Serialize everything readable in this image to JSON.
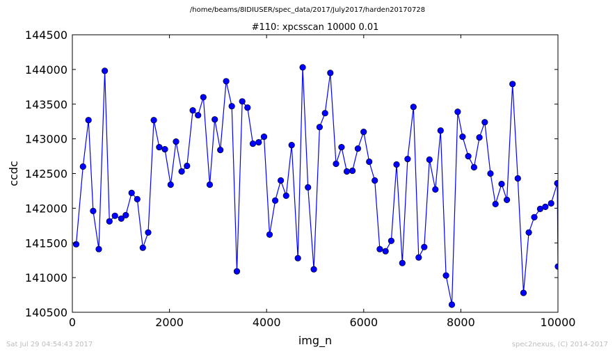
{
  "suptitle": "/home/beams/8IDIUSER/spec_data/2017/July2017/harden20170728",
  "footer": {
    "timestamp": "Sat Jul 29 04:54:43 2017",
    "credit": "spec2nexus, (C) 2014-2017"
  },
  "chart_data": {
    "type": "line",
    "title": "#110: xpcsscan 10000 0.01",
    "xlabel": "img_n",
    "ylabel": "ccdc",
    "xlim": [
      0,
      10000
    ],
    "ylim": [
      140500,
      144500
    ],
    "xticks": [
      "0",
      "2000",
      "4000",
      "6000",
      "8000",
      "10000"
    ],
    "yticks": [
      "140500",
      "141000",
      "141500",
      "142000",
      "142500",
      "143000",
      "143500",
      "144000",
      "144500"
    ],
    "grid": false,
    "legend": "none",
    "series_color": "#0000ff",
    "marker": "circle",
    "x": [
      79,
      219,
      333,
      429,
      544,
      667,
      763,
      877,
      1007,
      1101,
      1220,
      1337,
      1451,
      1561,
      1677,
      1790,
      1905,
      2024,
      2135,
      2250,
      2361,
      2480,
      2589,
      2698,
      2829,
      2932,
      3047,
      3167,
      3283,
      3388,
      3499,
      3607,
      3718,
      3836,
      3947,
      4061,
      4178,
      4292,
      4402,
      4516,
      4644,
      4744,
      4853,
      4973,
      5092,
      5204,
      5312,
      5430,
      5543,
      5652,
      5768,
      5879,
      5998,
      6113,
      6228,
      6331,
      6450,
      6567,
      6676,
      6795,
      6904,
      7025,
      7132,
      7246,
      7354,
      7475,
      7583,
      7695,
      7815,
      7935,
      8036,
      8153,
      8272,
      8382,
      8493,
      8611,
      8714,
      8839,
      8948,
      9065,
      9174,
      9291,
      9399,
      9513,
      9633,
      9741,
      9860,
      9987,
      10000
    ],
    "y": [
      141480,
      142600,
      143270,
      141960,
      141410,
      143980,
      141810,
      141890,
      141850,
      141900,
      142220,
      142130,
      141430,
      141650,
      143270,
      142880,
      142850,
      142340,
      142960,
      142530,
      142610,
      143410,
      143340,
      143600,
      142340,
      143280,
      142840,
      143830,
      143470,
      141090,
      143540,
      143450,
      142930,
      142950,
      143030,
      141620,
      142110,
      142400,
      142180,
      142910,
      141280,
      144030,
      142300,
      141120,
      143170,
      143370,
      143950,
      142640,
      142880,
      142530,
      142540,
      142860,
      143100,
      142670,
      142400,
      141410,
      141380,
      141530,
      142630,
      141210,
      142710,
      143460,
      141290,
      141440,
      142700,
      142270,
      143120,
      141030,
      140610,
      143390,
      143030,
      142750,
      142590,
      143020,
      143240,
      142500,
      142060,
      142350,
      142120,
      143790,
      142430,
      140780,
      141650,
      141870,
      141990,
      142020,
      142070,
      142360,
      141160
    ]
  }
}
